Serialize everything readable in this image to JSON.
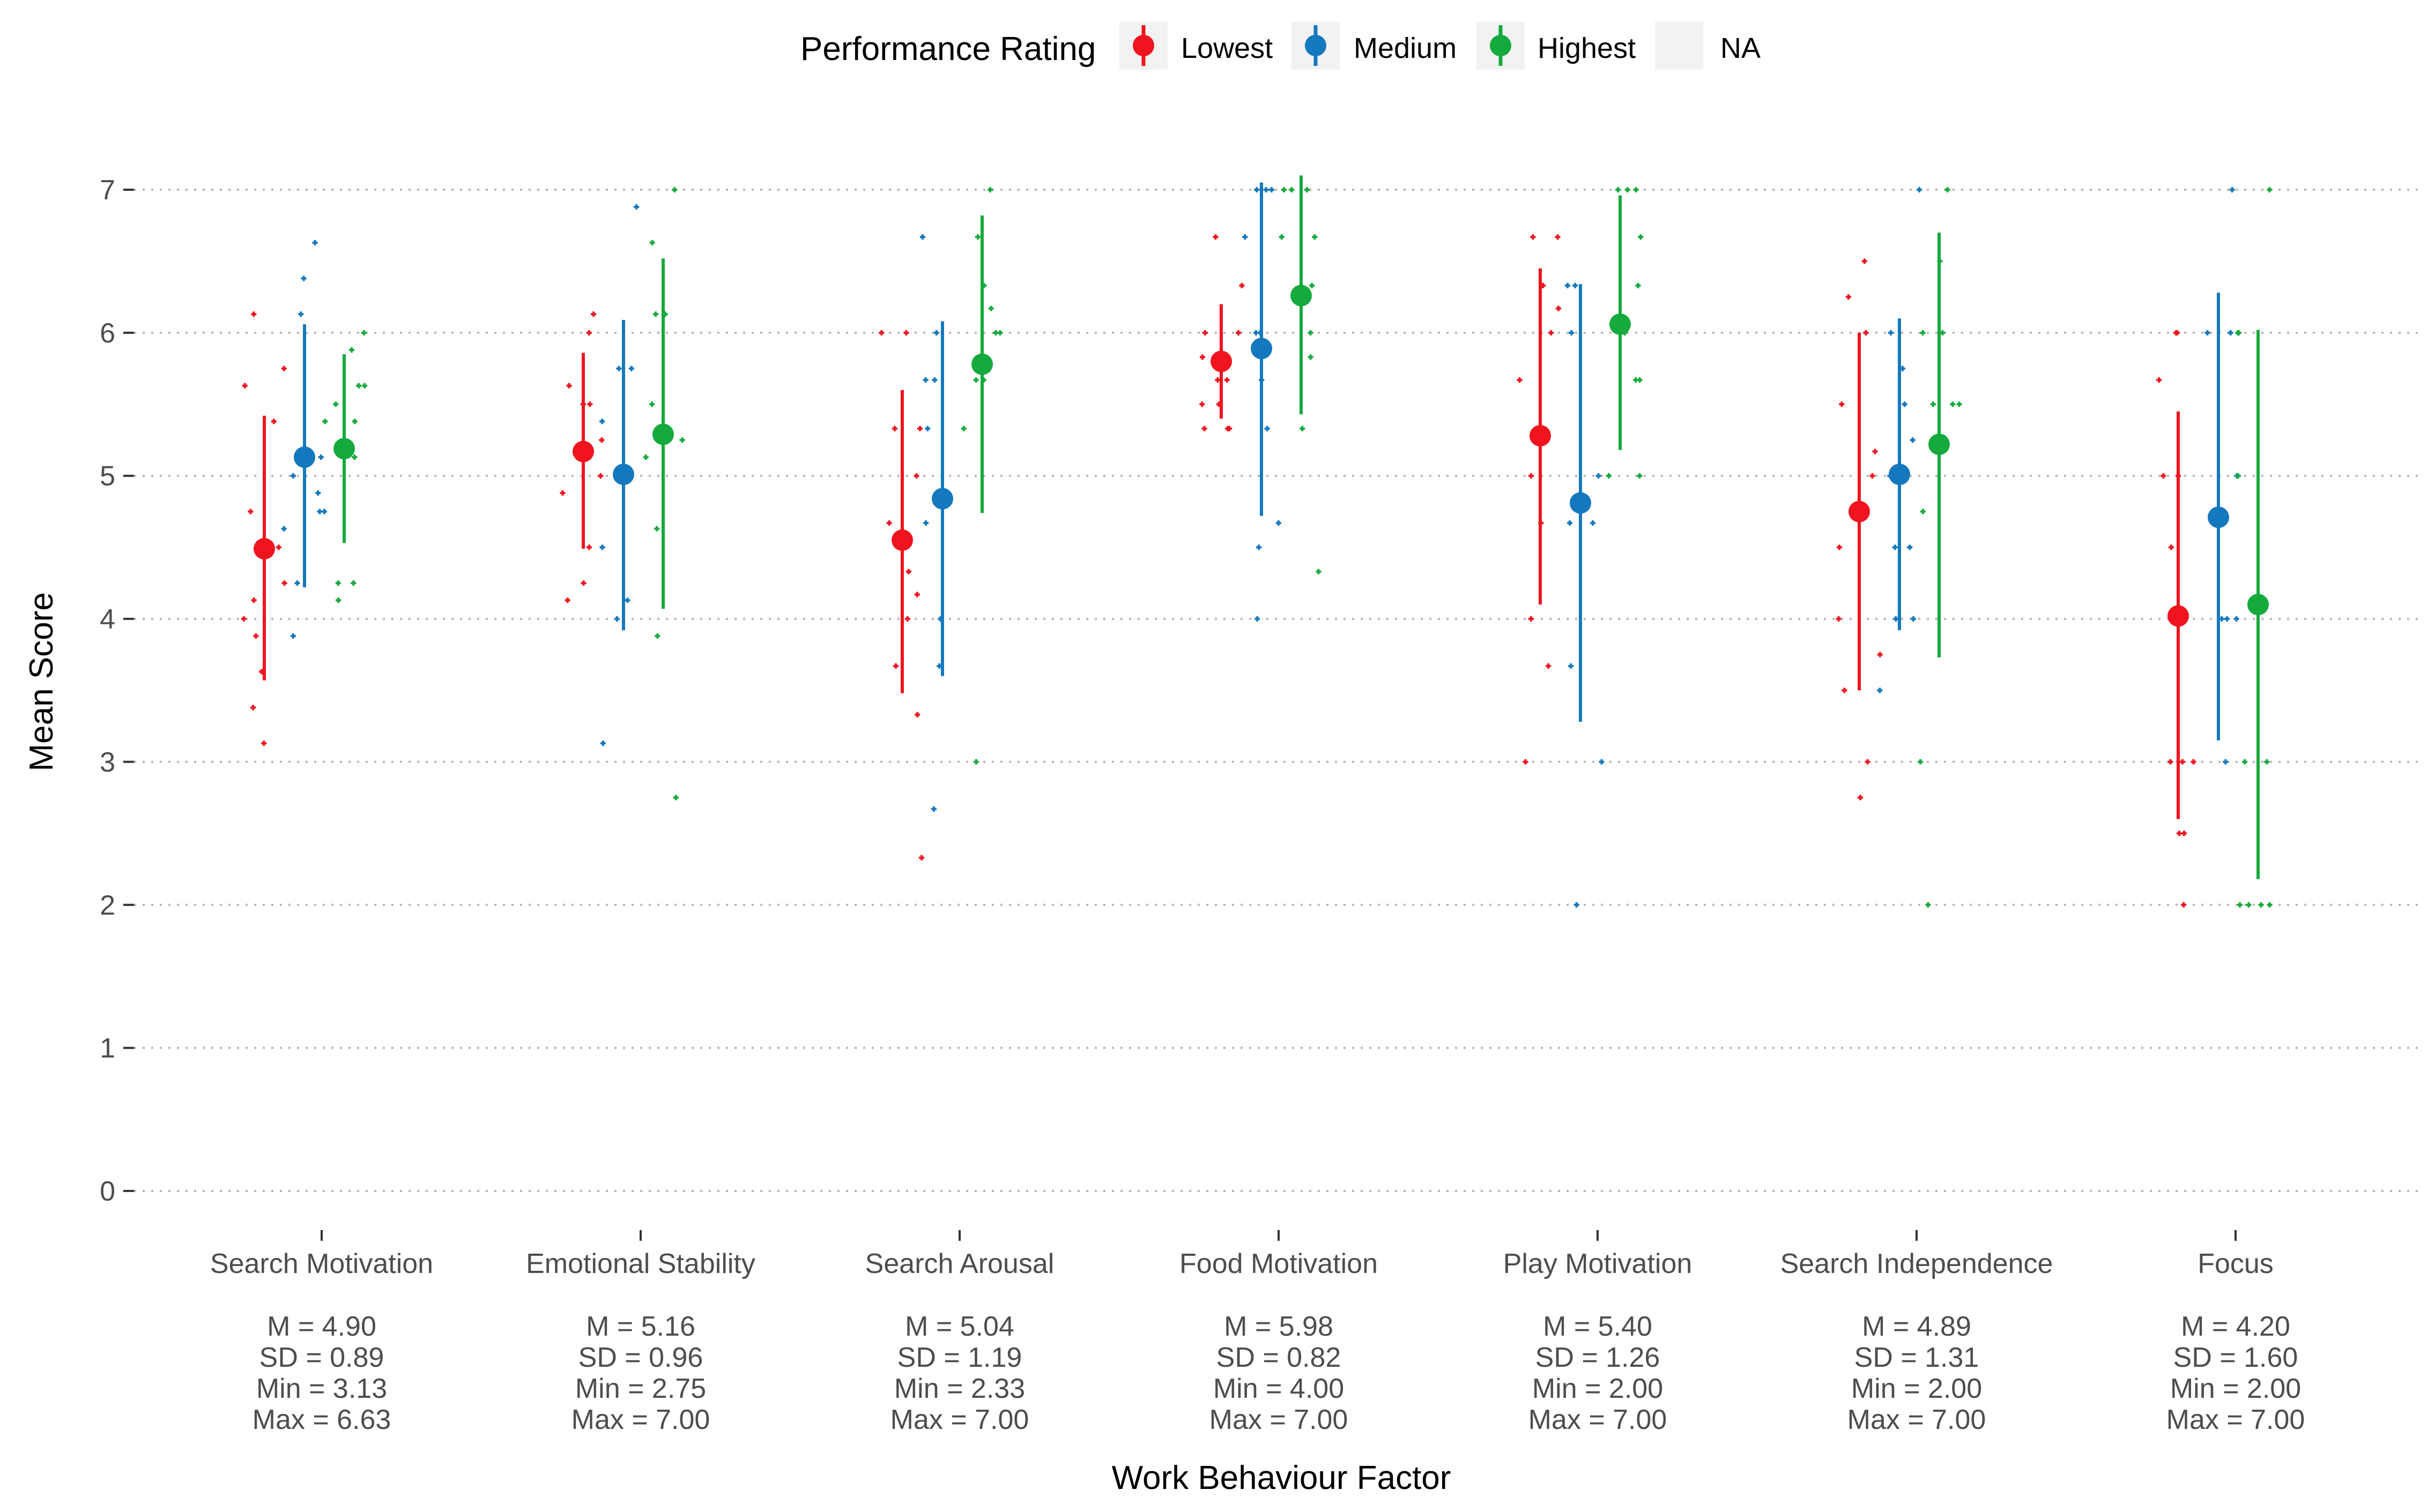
{
  "chart_data": {
    "type": "scatter",
    "title": "",
    "xlabel": "Work Behaviour Factor",
    "ylabel": "Mean Score",
    "ylim": [
      0,
      7
    ],
    "yticks": [
      "0",
      "1",
      "2",
      "3",
      "4",
      "5",
      "6",
      "7"
    ],
    "ytick_values": [
      0,
      1,
      2,
      3,
      4,
      5,
      6,
      7
    ],
    "grid": "horizontal dotted",
    "legend": {
      "title": "Performance Rating",
      "position": "top",
      "entries": [
        {
          "label": "Lowest",
          "color": "#f0141e"
        },
        {
          "label": "Medium",
          "color": "#1478be"
        },
        {
          "label": "Highest",
          "color": "#14aa3c"
        },
        {
          "label": "NA",
          "color": "#f2f2f2"
        }
      ]
    },
    "categories": [
      {
        "name": "Search Motivation",
        "stats": {
          "m": "M   = 4.90",
          "sd": "SD  = 0.89",
          "min": "Min = 3.13",
          "max": "Max = 6.63"
        }
      },
      {
        "name": "Emotional Stability",
        "stats": {
          "m": "M   = 5.16",
          "sd": "SD  = 0.96",
          "min": "Min = 2.75",
          "max": "Max = 7.00"
        }
      },
      {
        "name": "Search Arousal",
        "stats": {
          "m": "M   = 5.04",
          "sd": "SD  = 1.19",
          "min": "Min = 2.33",
          "max": "Max = 7.00"
        }
      },
      {
        "name": "Food Motivation",
        "stats": {
          "m": "M   = 5.98",
          "sd": "SD  = 0.82",
          "min": "Min = 4.00",
          "max": "Max = 7.00"
        }
      },
      {
        "name": "Play Motivation",
        "stats": {
          "m": "M   = 5.40",
          "sd": "SD  = 1.26",
          "min": "Min = 2.00",
          "max": "Max = 7.00"
        }
      },
      {
        "name": "Search Independence",
        "stats": {
          "m": "M   = 4.89",
          "sd": "SD  = 1.31",
          "min": "Min = 2.00",
          "max": "Max = 7.00"
        }
      },
      {
        "name": "Focus",
        "stats": {
          "m": "M   = 4.20",
          "sd": "SD  = 1.60",
          "min": "Min = 2.00",
          "max": "Max = 7.00"
        }
      }
    ],
    "series": [
      {
        "name": "Lowest",
        "color": "#f0141e",
        "means": [
          4.49,
          5.17,
          4.55,
          5.8,
          5.28,
          4.75,
          4.02
        ],
        "lower": [
          3.57,
          4.49,
          3.48,
          5.4,
          4.1,
          3.5,
          2.6
        ],
        "upper": [
          5.42,
          5.86,
          5.6,
          6.2,
          6.45,
          6.0,
          5.45
        ],
        "points": [
          [
            3.63,
            3.13,
            3.38,
            4.0,
            4.75,
            5.63,
            5.75,
            6.13,
            4.13,
            3.88,
            5.38,
            4.5,
            4.25
          ],
          [
            4.5,
            5.0,
            5.5,
            5.63,
            6.13,
            6.0,
            4.13,
            4.25,
            4.88,
            5.25,
            5.5
          ],
          [
            2.33,
            3.33,
            3.67,
            4.0,
            4.17,
            4.67,
            5.0,
            5.33,
            6.0,
            6.0,
            5.33,
            4.33
          ],
          [
            5.33,
            5.33,
            5.33,
            5.5,
            5.67,
            5.67,
            6.0,
            6.0,
            6.33,
            6.67,
            5.83,
            5.5
          ],
          [
            3.67,
            4.0,
            4.67,
            5.0,
            5.33,
            5.67,
            6.0,
            6.33,
            6.67,
            6.67,
            3.0,
            6.17
          ],
          [
            3.5,
            3.75,
            4.0,
            4.5,
            5.0,
            5.5,
            6.0,
            6.25,
            6.5,
            2.75,
            3.0,
            5.17
          ],
          [
            2.5,
            2.5,
            3.0,
            3.0,
            3.0,
            4.0,
            4.5,
            5.0,
            5.0,
            5.67,
            6.0,
            6.0,
            2.0
          ]
        ]
      },
      {
        "name": "Medium",
        "color": "#1478be",
        "means": [
          5.13,
          5.01,
          4.84,
          5.89,
          4.81,
          5.01,
          4.71
        ],
        "lower": [
          4.22,
          3.92,
          3.6,
          4.72,
          3.28,
          3.92,
          3.15
        ],
        "upper": [
          6.06,
          6.09,
          6.08,
          7.05,
          6.34,
          6.1,
          6.28
        ],
        "points": [
          [
            3.88,
            4.25,
            4.63,
            4.75,
            4.88,
            5.0,
            5.13,
            6.13,
            6.38,
            6.63,
            4.75
          ],
          [
            3.13,
            4.0,
            4.5,
            5.0,
            5.38,
            5.75,
            5.75,
            6.88,
            4.13
          ],
          [
            2.67,
            3.67,
            4.0,
            4.67,
            5.33,
            5.67,
            6.0,
            6.67,
            5.67
          ],
          [
            4.0,
            4.5,
            4.67,
            5.33,
            5.67,
            6.0,
            6.67,
            7.0,
            7.0,
            7.0,
            6.0
          ],
          [
            2.0,
            3.0,
            3.67,
            4.67,
            5.0,
            6.0,
            6.33,
            6.33,
            4.67
          ],
          [
            3.5,
            4.0,
            4.0,
            4.5,
            5.0,
            5.5,
            5.75,
            6.0,
            7.0,
            4.5,
            5.25
          ],
          [
            3.0,
            4.0,
            4.0,
            4.0,
            5.0,
            6.0,
            6.0,
            7.0
          ]
        ]
      },
      {
        "name": "Highest",
        "color": "#14aa3c",
        "means": [
          5.19,
          5.29,
          5.78,
          6.26,
          6.06,
          5.22,
          4.1
        ],
        "lower": [
          4.53,
          4.07,
          4.74,
          5.43,
          5.18,
          3.73,
          2.18
        ],
        "upper": [
          5.85,
          6.52,
          6.82,
          7.1,
          6.96,
          6.7,
          6.02
        ],
        "points": [
          [
            4.13,
            4.25,
            4.25,
            5.13,
            5.38,
            5.38,
            5.63,
            5.63,
            6.0,
            5.88,
            5.5
          ],
          [
            2.75,
            3.88,
            4.63,
            5.13,
            5.25,
            5.5,
            6.13,
            6.13,
            6.63,
            7.0
          ],
          [
            3.0,
            5.33,
            5.67,
            5.67,
            6.0,
            6.0,
            6.33,
            6.67,
            7.0,
            6.17
          ],
          [
            4.33,
            5.33,
            5.83,
            6.0,
            6.33,
            6.67,
            6.67,
            7.0,
            7.0,
            7.0
          ],
          [
            5.0,
            5.0,
            5.67,
            5.67,
            6.0,
            6.33,
            6.67,
            7.0,
            7.0,
            7.0
          ],
          [
            2.0,
            3.0,
            4.75,
            5.25,
            5.5,
            5.5,
            5.5,
            6.0,
            6.0,
            6.5,
            7.0
          ],
          [
            2.0,
            2.0,
            2.0,
            2.0,
            3.0,
            3.0,
            5.0,
            6.0,
            6.0,
            7.0
          ]
        ]
      }
    ]
  }
}
